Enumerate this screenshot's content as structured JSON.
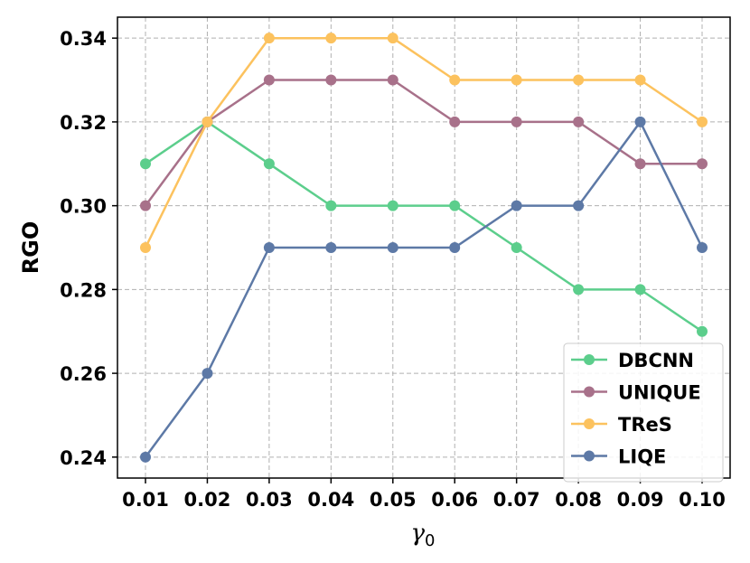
{
  "chart_data": {
    "type": "line",
    "title": "",
    "xlabel": {
      "symbol": "γ",
      "subscript": "0"
    },
    "ylabel": "RGO",
    "categories": [
      "0.01",
      "0.02",
      "0.03",
      "0.04",
      "0.05",
      "0.06",
      "0.07",
      "0.08",
      "0.09",
      "0.10"
    ],
    "ylim": [
      0.235,
      0.345
    ],
    "yticks": [
      "0.24",
      "0.26",
      "0.28",
      "0.30",
      "0.32",
      "0.34"
    ],
    "grid": true,
    "legend_position": "bottom-right",
    "series": [
      {
        "name": "DBCNN",
        "color": "#5cce8c",
        "values": [
          0.31,
          0.32,
          0.31,
          0.3,
          0.3,
          0.3,
          0.29,
          0.28,
          0.28,
          0.27
        ]
      },
      {
        "name": "UNIQUE",
        "color": "#a8718a",
        "values": [
          0.3,
          0.32,
          0.33,
          0.33,
          0.33,
          0.32,
          0.32,
          0.32,
          0.31,
          0.31
        ]
      },
      {
        "name": "TReS",
        "color": "#fcc25e",
        "values": [
          0.29,
          0.32,
          0.34,
          0.34,
          0.34,
          0.33,
          0.33,
          0.33,
          0.33,
          0.32
        ]
      },
      {
        "name": "LIQE",
        "color": "#5d79a6",
        "values": [
          0.24,
          0.26,
          0.29,
          0.29,
          0.29,
          0.29,
          0.3,
          0.3,
          0.32,
          0.29
        ]
      }
    ]
  }
}
